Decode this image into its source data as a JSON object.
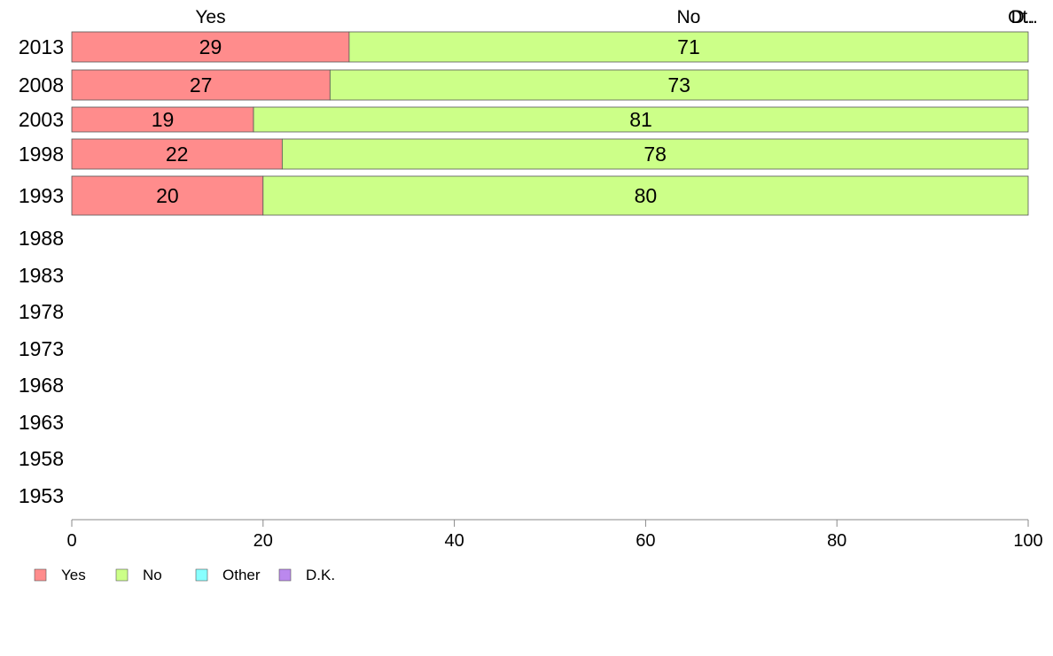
{
  "chart_data": {
    "type": "bar",
    "orientation": "horizontal",
    "stacked": true,
    "categories": [
      "2013",
      "2008",
      "2003",
      "1998",
      "1993",
      "1988",
      "1983",
      "1978",
      "1973",
      "1968",
      "1963",
      "1958",
      "1953"
    ],
    "series": [
      {
        "name": "Yes",
        "values": [
          29,
          27,
          19,
          22,
          20,
          null,
          null,
          null,
          null,
          null,
          null,
          null,
          null
        ],
        "labels": [
          "29",
          "27",
          "19",
          "22",
          "20",
          "",
          "",
          "",
          "",
          "",
          "",
          "",
          ""
        ]
      },
      {
        "name": "No",
        "values": [
          71,
          73,
          81,
          78,
          80,
          null,
          null,
          null,
          null,
          null,
          null,
          null,
          null
        ],
        "labels": [
          "71",
          "73",
          "81",
          "78",
          "80",
          "",
          "",
          "",
          "",
          "",
          "",
          "",
          ""
        ]
      },
      {
        "name": "Other",
        "values": [
          0,
          0,
          0,
          0,
          0,
          null,
          null,
          null,
          null,
          null,
          null,
          null,
          null
        ],
        "labels": [
          "",
          "",
          "",
          "",
          "",
          "",
          "",
          "",
          "",
          "",
          "",
          "",
          ""
        ]
      },
      {
        "name": "D.K.",
        "values": [
          0,
          0,
          0,
          0,
          0,
          null,
          null,
          null,
          null,
          null,
          null,
          null,
          null
        ],
        "labels": [
          "",
          "",
          "",
          "",
          "",
          "",
          "",
          "",
          "",
          "",
          "",
          "",
          ""
        ]
      }
    ],
    "top_labels": [
      {
        "text": "Yes",
        "at": 14.5
      },
      {
        "text": "No",
        "at": 64.5
      },
      {
        "text": "Ot..",
        "at": 100
      },
      {
        "text": "D..",
        "at": 100
      }
    ],
    "xlim": [
      0,
      100
    ],
    "xticks": [
      0,
      20,
      40,
      60,
      80,
      100
    ],
    "xtick_labels": [
      "0",
      "20",
      "40",
      "60",
      "80",
      "100"
    ],
    "grid": false,
    "legend_position": "bottom-left",
    "colors": {
      "Yes": "#ff8c8c",
      "No": "#ccff88",
      "Other": "#88ffff",
      "D.K.": "#bb88ee",
      "bar_edge": "#555555",
      "axis": "#888888",
      "text": "#000000"
    }
  }
}
